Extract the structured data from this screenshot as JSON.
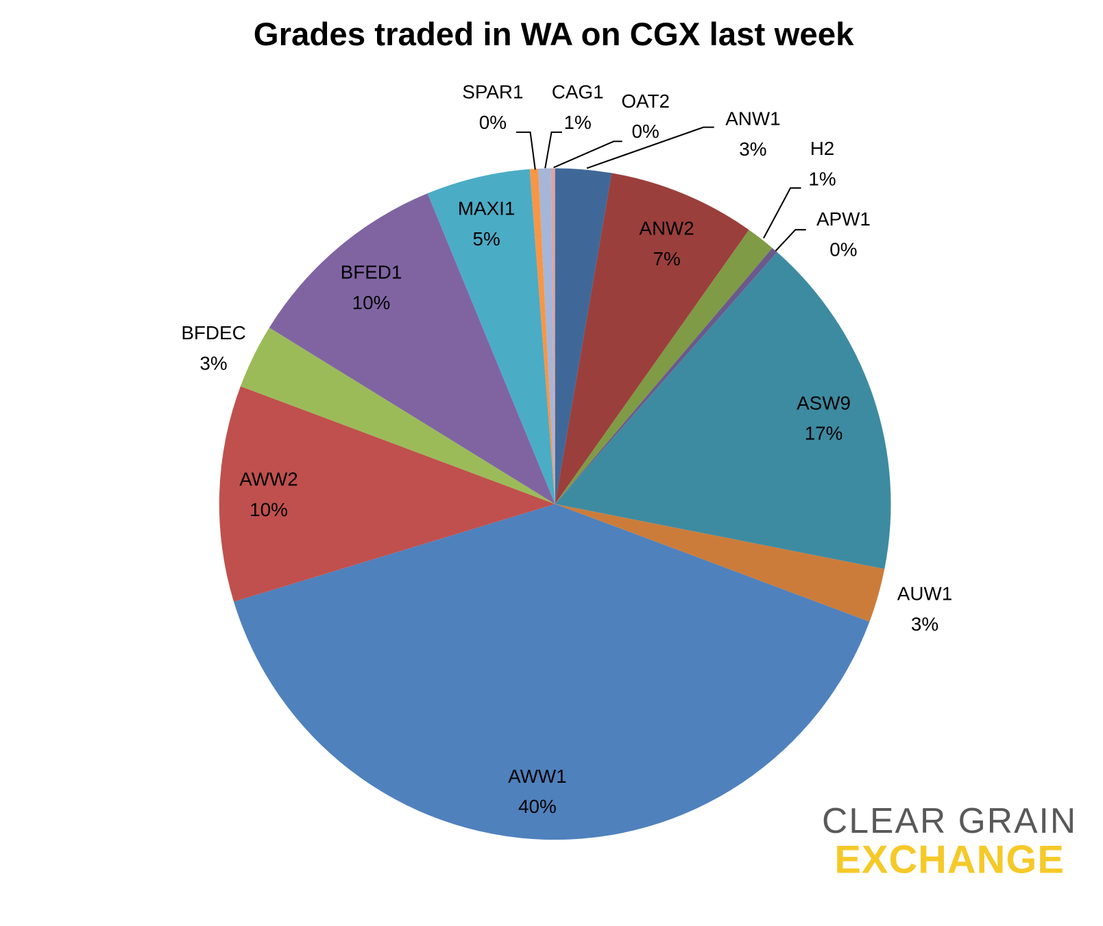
{
  "chart_data": {
    "type": "pie",
    "title": "Grades traded in WA on CGX last week",
    "categories": [
      "ANW1",
      "ANW2",
      "H2",
      "APW1",
      "ASW9",
      "AUW1",
      "AWW1",
      "AWW2",
      "BFDEC",
      "BFED1",
      "MAXI1",
      "SPAR1",
      "CAG1",
      "OAT2"
    ],
    "values": [
      2.7,
      7.1,
      1.4,
      0.3,
      16.6,
      2.6,
      39.6,
      10.4,
      3.1,
      10.0,
      5.0,
      0.4,
      0.6,
      0.2
    ],
    "value_labels": [
      "3%",
      "7%",
      "1%",
      "0%",
      "17%",
      "3%",
      "40%",
      "10%",
      "3%",
      "10%",
      "5%",
      "0%",
      "1%",
      "0%"
    ],
    "colors": [
      "#3f6899",
      "#9b3f3c",
      "#7f9b46",
      "#6a5a8c",
      "#3d8ba1",
      "#cc7c3a",
      "#4f81bd",
      "#c0504d",
      "#9bbb59",
      "#8064a2",
      "#4bacc6",
      "#f79646",
      "#a5b6d9",
      "#d9a5a4"
    ]
  },
  "logo": {
    "line1": "CLEAR GRAIN",
    "line2": "EXCHANGE"
  }
}
